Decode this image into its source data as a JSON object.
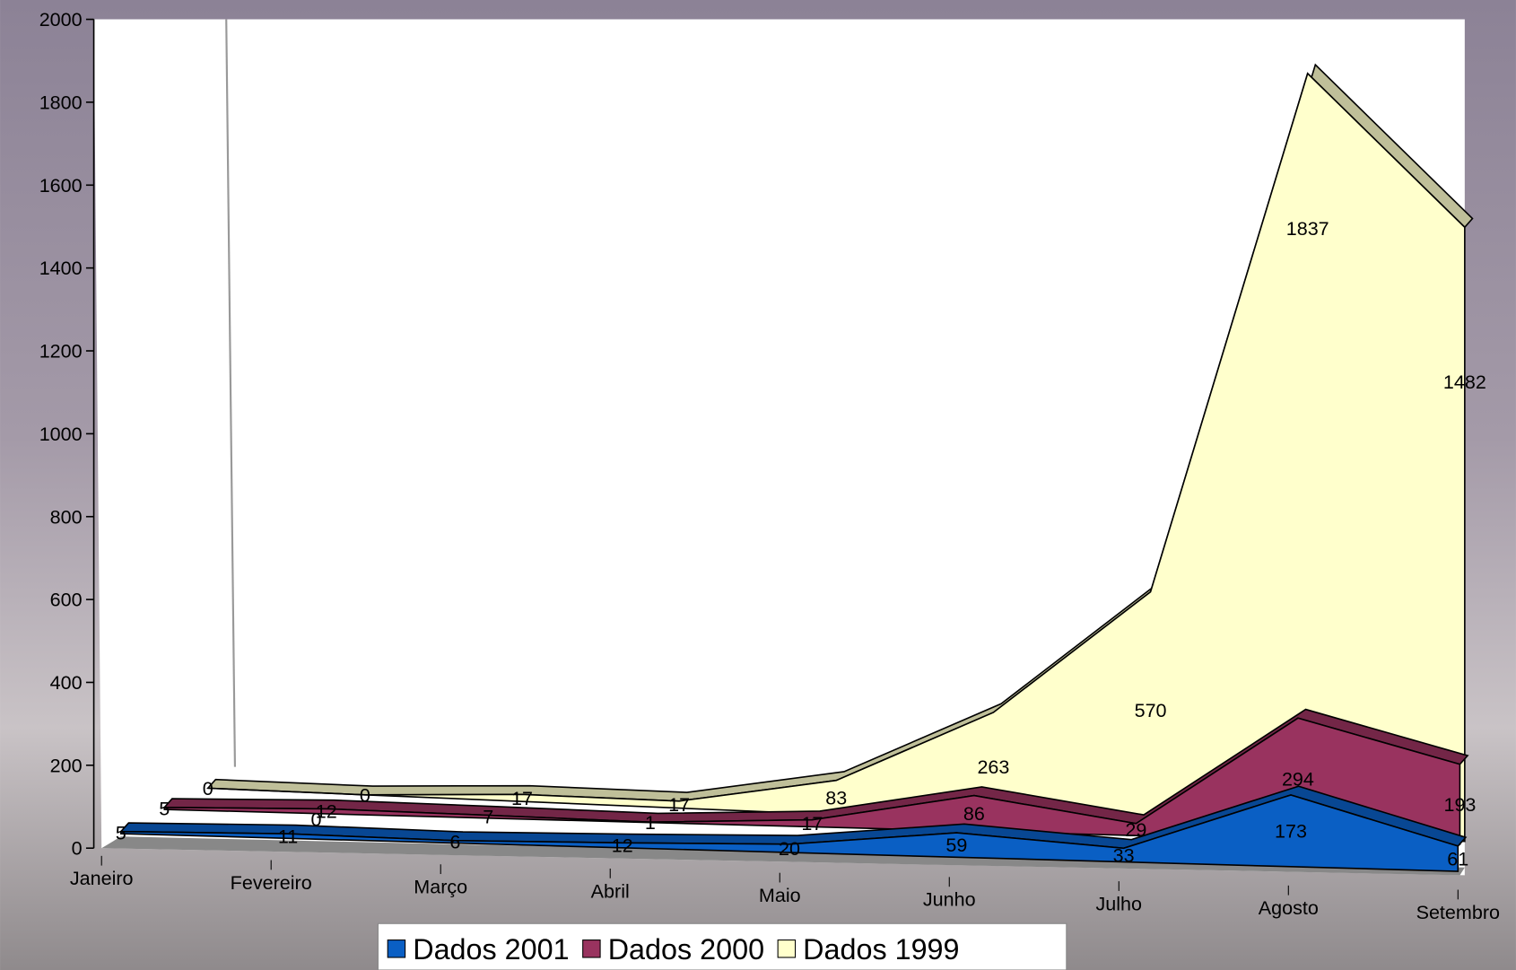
{
  "chart_data": {
    "type": "area3d",
    "categories": [
      "Janeiro",
      "Fevereiro",
      "Março",
      "Abril",
      "Maio",
      "Junho",
      "Julho",
      "Agosto",
      "Setembro"
    ],
    "series": [
      {
        "name": "Dados 2001",
        "color": "#0a5fc4",
        "values": [
          5,
          11,
          6,
          12,
          20,
          59,
          33,
          173,
          61
        ]
      },
      {
        "name": "Dados 2000",
        "color": "#99335f",
        "values": [
          5,
          12,
          7,
          1,
          17,
          86,
          29,
          294,
          193
        ]
      },
      {
        "name": "Dados 1999",
        "color": "#ffffcc",
        "values": [
          0,
          0,
          17,
          17,
          83,
          263,
          570,
          1837,
          1482
        ]
      }
    ],
    "annotations": [
      "0"
    ],
    "ylim": [
      0,
      2000
    ],
    "yticks": [
      0,
      200,
      400,
      600,
      800,
      1000,
      1200,
      1400,
      1600,
      1800,
      2000
    ],
    "legend": "bottom"
  }
}
